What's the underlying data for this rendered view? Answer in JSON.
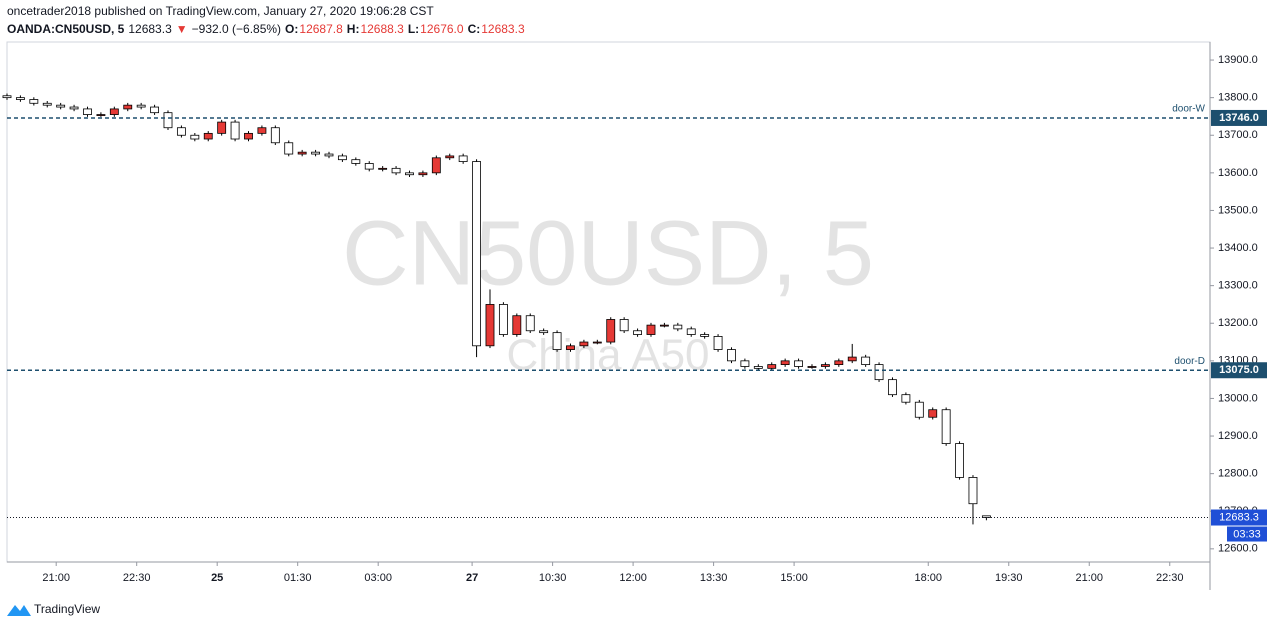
{
  "header": {
    "publisher": "oncetrader2018 published on TradingView.com, January 27, 2020 19:06:28 CST",
    "symbol": "OANDA:CN50USD, 5",
    "last": "12683.3",
    "arrow": "▼",
    "change": "−932.0 (−6.85%)",
    "ohlc": [
      {
        "key": "O:",
        "value": "12687.8"
      },
      {
        "key": "H:",
        "value": "12688.3"
      },
      {
        "key": "L:",
        "value": "12676.0"
      },
      {
        "key": "C:",
        "value": "12683.3"
      }
    ]
  },
  "chart_data": {
    "type": "candlestick",
    "watermark": "CN50USD, 5",
    "watermark_sub": "China A50",
    "up_color": "#e53935",
    "down_color": "#ffffff",
    "border_color": "#000000",
    "x": [
      0,
      3,
      6,
      9,
      12,
      15,
      18,
      21,
      24,
      27,
      30,
      33,
      36,
      39,
      42,
      45,
      48,
      51,
      54,
      57,
      60,
      63,
      66,
      69,
      72,
      75,
      78,
      81,
      84,
      87,
      90,
      93,
      96,
      99,
      102,
      105,
      108,
      111,
      114,
      117,
      120,
      123,
      126,
      129,
      132,
      135,
      138,
      141,
      144,
      147,
      150,
      153,
      156,
      159,
      162,
      165,
      168,
      171,
      174,
      177,
      180,
      183,
      186,
      189,
      192,
      195,
      198,
      201,
      204,
      207,
      210,
      213,
      216,
      219
    ],
    "open": [
      13805,
      13800,
      13795,
      13785,
      13780,
      13775,
      13770,
      13755,
      13755,
      13770,
      13780,
      13775,
      13760,
      13720,
      13700,
      13690,
      13705,
      13735,
      13690,
      13705,
      13720,
      13680,
      13650,
      13655,
      13650,
      13645,
      13635,
      13625,
      13610,
      13612,
      13600,
      13595,
      13600,
      13640,
      13645,
      13630,
      13140,
      13250,
      13170,
      13220,
      13180,
      13175,
      13130,
      13140,
      13150,
      13150,
      13210,
      13180,
      13170,
      13195,
      13195,
      13185,
      13170,
      13165,
      13130,
      13100,
      13085,
      13080,
      13090,
      13100,
      13085,
      13085,
      13090,
      13100,
      13110,
      13090,
      13050,
      13010,
      12990,
      12950,
      12970,
      12880,
      12790,
      12687.8
    ],
    "high": [
      13811,
      13806,
      13801,
      13791,
      13786,
      13781,
      13776,
      13761,
      13776,
      13786,
      13786,
      13781,
      13766,
      13726,
      13706,
      13711,
      13741,
      13741,
      13711,
      13726,
      13726,
      13686,
      13661,
      13661,
      13656,
      13651,
      13641,
      13631,
      13618,
      13618,
      13606,
      13606,
      13646,
      13651,
      13651,
      13636,
      13290,
      13256,
      13226,
      13226,
      13186,
      13181,
      13146,
      13156,
      13156,
      13216,
      13216,
      13186,
      13201,
      13201,
      13201,
      13191,
      13176,
      13171,
      13136,
      13106,
      13091,
      13096,
      13106,
      13106,
      13091,
      13096,
      13106,
      13145,
      13116,
      13096,
      13056,
      13016,
      12996,
      12976,
      12976,
      12886,
      12796,
      12688.3
    ],
    "low": [
      13794,
      13789,
      13779,
      13774,
      13769,
      13764,
      13749,
      13749,
      13749,
      13764,
      13769,
      13754,
      13714,
      13694,
      13684,
      13684,
      13699,
      13684,
      13684,
      13699,
      13674,
      13644,
      13644,
      13644,
      13639,
      13629,
      13619,
      13604,
      13604,
      13594,
      13589,
      13589,
      13594,
      13634,
      13624,
      13110,
      13134,
      13164,
      13164,
      13174,
      13169,
      13124,
      13124,
      13134,
      13144,
      13144,
      13174,
      13164,
      13164,
      13189,
      13179,
      13164,
      13159,
      13124,
      13094,
      13079,
      13074,
      13074,
      13084,
      13079,
      13079,
      13079,
      13084,
      13094,
      13084,
      13044,
      13004,
      12984,
      12944,
      12944,
      12874,
      12784,
      12665,
      12676
    ],
    "close": [
      13800,
      13795,
      13785,
      13780,
      13775,
      13770,
      13755,
      13755,
      13770,
      13780,
      13775,
      13760,
      13720,
      13700,
      13690,
      13705,
      13735,
      13690,
      13705,
      13720,
      13680,
      13650,
      13655,
      13650,
      13645,
      13635,
      13625,
      13610,
      13612,
      13600,
      13595,
      13600,
      13640,
      13645,
      13630,
      13140,
      13250,
      13170,
      13220,
      13180,
      13175,
      13130,
      13140,
      13150,
      13150,
      13210,
      13180,
      13170,
      13195,
      13195,
      13185,
      13170,
      13165,
      13130,
      13100,
      13085,
      13080,
      13090,
      13100,
      13085,
      13085,
      13090,
      13100,
      13110,
      13090,
      13050,
      13010,
      12990,
      12950,
      12970,
      12880,
      12790,
      12720,
      12683.3
    ],
    "xlim": [
      0,
      269
    ],
    "ylim": [
      12565,
      13948
    ],
    "xticks": [
      {
        "value": 11,
        "label": "21:00"
      },
      {
        "value": 29,
        "label": "22:30"
      },
      {
        "value": 47,
        "label": "25"
      },
      {
        "value": 65,
        "label": "01:30"
      },
      {
        "value": 83,
        "label": "03:00"
      },
      {
        "value": 104,
        "label": "27"
      },
      {
        "value": 122,
        "label": "10:30"
      },
      {
        "value": 140,
        "label": "12:00"
      },
      {
        "value": 158,
        "label": "13:30"
      },
      {
        "value": 176,
        "label": "15:00"
      },
      {
        "value": 206,
        "label": "18:00"
      },
      {
        "value": 224,
        "label": "19:30"
      },
      {
        "value": 242,
        "label": "21:00"
      },
      {
        "value": 260,
        "label": "22:30"
      }
    ],
    "yticks": [
      {
        "value": 12600,
        "label": "12600.0"
      },
      {
        "value": 12700,
        "label": "12700.0"
      },
      {
        "value": 12800,
        "label": "12800.0"
      },
      {
        "value": 12900,
        "label": "12900.0"
      },
      {
        "value": 13000,
        "label": "13000.0"
      },
      {
        "value": 13100,
        "label": "13100.0"
      },
      {
        "value": 13200,
        "label": "13200.0"
      },
      {
        "value": 13300,
        "label": "13300.0"
      },
      {
        "value": 13400,
        "label": "13400.0"
      },
      {
        "value": 13500,
        "label": "13500.0"
      },
      {
        "value": 13600,
        "label": "13600.0"
      },
      {
        "value": 13700,
        "label": "13700.0"
      },
      {
        "value": 13800,
        "label": "13800.0"
      },
      {
        "value": 13900,
        "label": "13900.0"
      }
    ],
    "levels": [
      {
        "name": "door-W",
        "value": 13746.0,
        "value_label": "13746.0",
        "color": "#1d4f6e"
      },
      {
        "name": "door-D",
        "value": 13075.0,
        "value_label": "13075.0",
        "color": "#1d4f6e"
      }
    ],
    "current": {
      "value": 12683.3,
      "value_label": "12683.3",
      "countdown": "03:33",
      "color": "#1f4fd6"
    }
  },
  "footer": {
    "brand": "TradingView"
  }
}
